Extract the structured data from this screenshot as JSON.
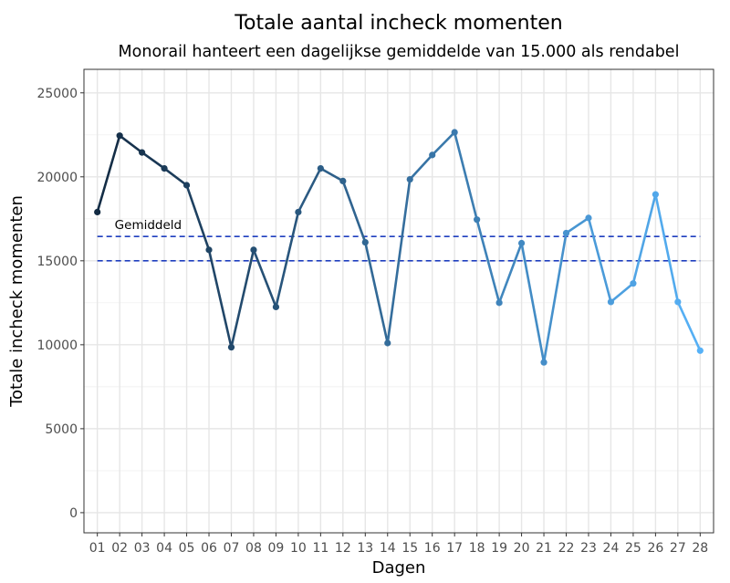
{
  "chart_data": {
    "type": "line",
    "title": "Totale aantal incheck momenten",
    "subtitle": "Monorail hanteert een dagelijkse gemiddelde van 15.000 als rendabel",
    "xlabel": "Dagen",
    "ylabel": "Totale incheck momenten",
    "categories": [
      "01",
      "02",
      "03",
      "04",
      "05",
      "06",
      "07",
      "08",
      "09",
      "10",
      "11",
      "12",
      "13",
      "14",
      "15",
      "16",
      "17",
      "18",
      "19",
      "20",
      "21",
      "22",
      "23",
      "24",
      "25",
      "26",
      "27",
      "28"
    ],
    "values": [
      17900,
      22450,
      21450,
      20500,
      19500,
      15650,
      9850,
      15650,
      12250,
      17900,
      20500,
      19750,
      16100,
      10100,
      19850,
      21300,
      22650,
      17450,
      12500,
      16050,
      8950,
      16650,
      17550,
      12550,
      13650,
      18950,
      12550,
      9650
    ],
    "ylim": [
      -1200,
      26400
    ],
    "yticks": [
      0,
      5000,
      10000,
      15000,
      20000,
      25000
    ],
    "grid": true,
    "reference_lines": [
      {
        "value": 15000,
        "style": "dashed",
        "color": "#1f3fbf"
      },
      {
        "value": 16450,
        "style": "dashed",
        "color": "#1f3fbf",
        "label": "Gemiddeld"
      }
    ],
    "colors": {
      "start": "#132b43",
      "end": "#56b1f7"
    }
  }
}
